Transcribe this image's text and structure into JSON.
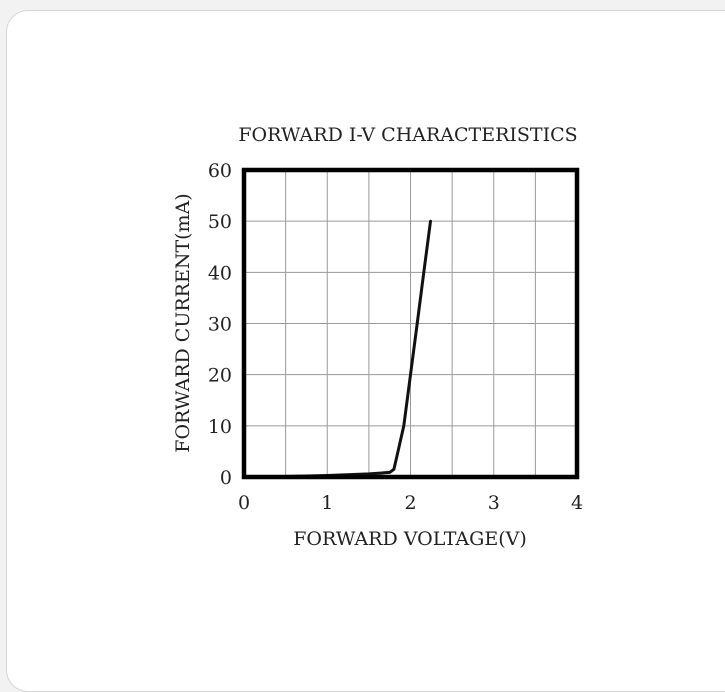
{
  "chart_data": {
    "type": "line",
    "title": "FORWARD I-V CHARACTERISTICS",
    "xlabel": "FORWARD VOLTAGE(V)",
    "ylabel": "FORWARD CURRENT(mA)",
    "xlim": [
      0,
      4
    ],
    "ylim": [
      0,
      60
    ],
    "xticks": [
      "0",
      "1",
      "2",
      "3",
      "4"
    ],
    "yticks": [
      "0",
      "10",
      "20",
      "30",
      "40",
      "50",
      "60"
    ],
    "grid": true,
    "series": [
      {
        "x": [
          0.0,
          0.5,
          1.0,
          1.5,
          1.75,
          1.8,
          1.85,
          1.92,
          2.0,
          2.08,
          2.16,
          2.24
        ],
        "y": [
          0.0,
          0.1,
          0.3,
          0.6,
          0.9,
          1.5,
          5.0,
          10.0,
          20.0,
          30.0,
          40.0,
          50.0
        ]
      }
    ],
    "colors": {
      "line": "#111111",
      "grid": "#9a9a9a",
      "frame": "#000000"
    }
  }
}
